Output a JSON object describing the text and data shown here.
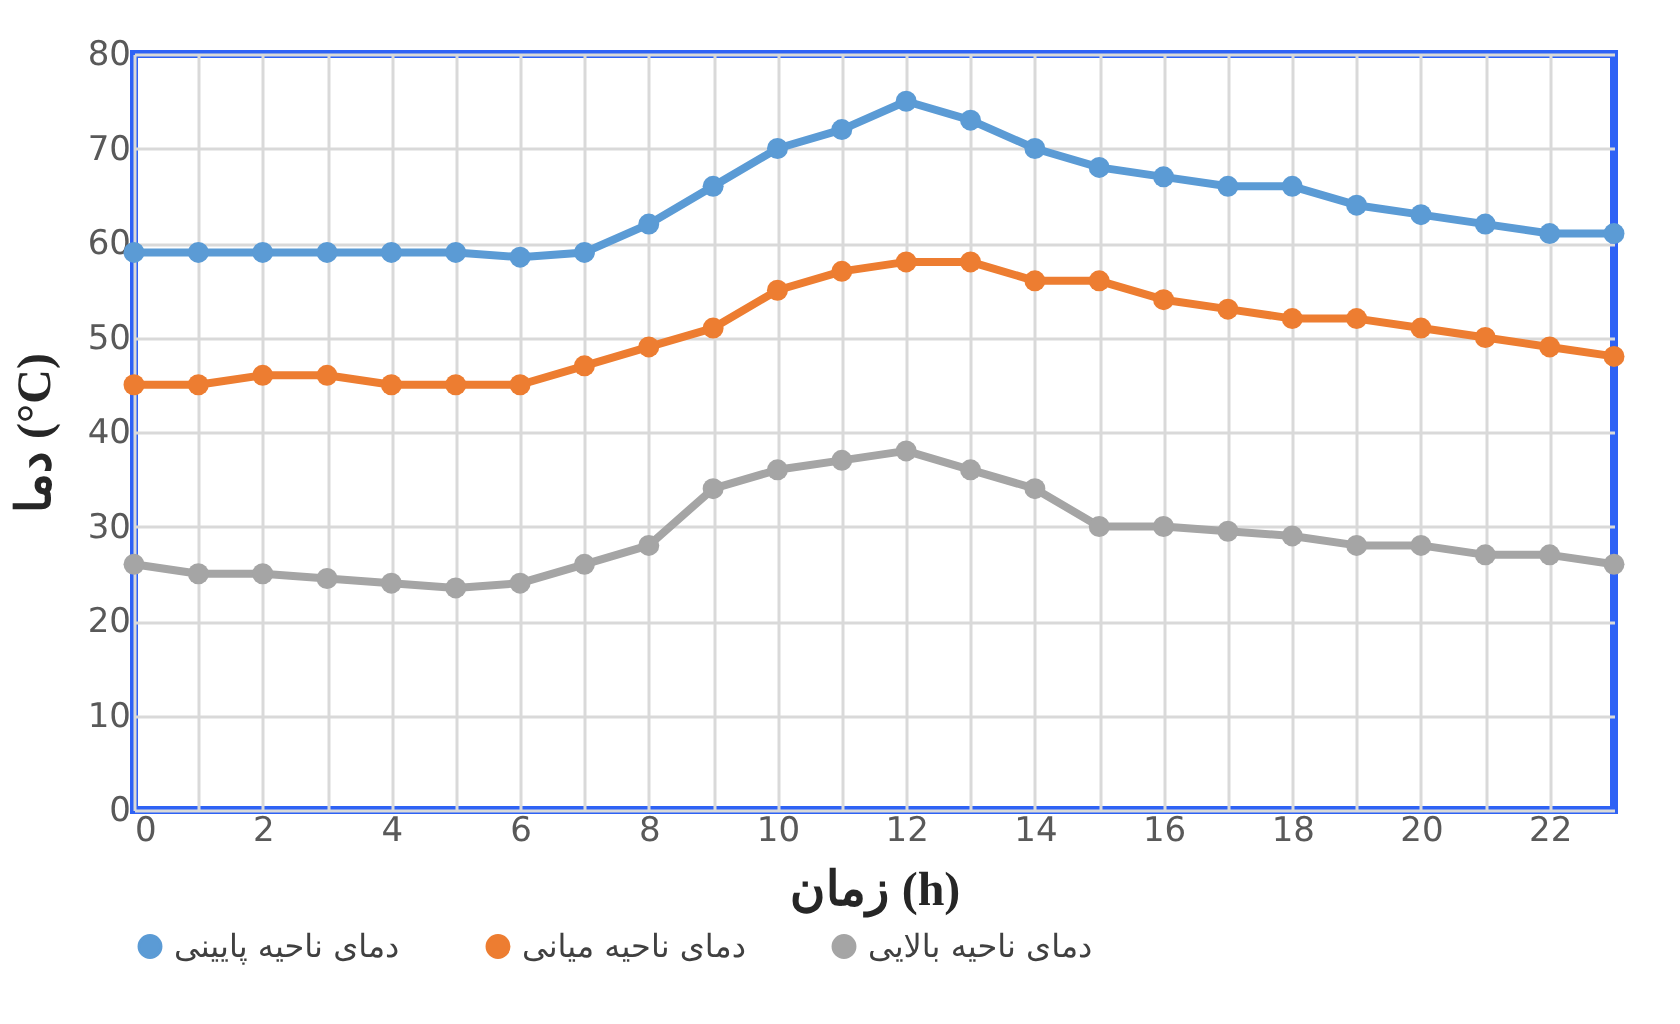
{
  "chart_data": {
    "type": "line",
    "xlabel": "زمان (h)",
    "ylabel": "دما (°C)",
    "x": [
      0,
      1,
      2,
      3,
      4,
      5,
      6,
      7,
      8,
      9,
      10,
      11,
      12,
      13,
      14,
      15,
      16,
      17,
      18,
      19,
      20,
      21,
      22,
      23
    ],
    "xlim": [
      0,
      23
    ],
    "xticks": [
      0,
      {
        "value": 1,
        "label": null
      },
      2,
      {
        "value": 3,
        "label": null
      },
      4,
      {
        "value": 5,
        "label": null
      },
      6,
      {
        "value": 7,
        "label": null
      },
      8,
      {
        "value": 9,
        "label": null
      },
      10,
      {
        "value": 11,
        "label": null
      },
      12,
      {
        "value": 13,
        "label": null
      },
      14,
      {
        "value": 15,
        "label": null
      },
      16,
      {
        "value": 17,
        "label": null
      },
      18,
      {
        "value": 19,
        "label": null
      },
      20,
      {
        "value": 21,
        "label": null
      },
      22
    ],
    "ylim": [
      0,
      80
    ],
    "yticks": [
      0,
      10,
      20,
      30,
      40,
      50,
      60,
      70,
      80
    ],
    "grid": true,
    "legend": "bottom",
    "marker": "circle",
    "line_style": "solid",
    "series": [
      {
        "name": "دمای ناحیه پایینی",
        "color": "#5b9bd5",
        "values": [
          59,
          59,
          59,
          59,
          59,
          59,
          58.5,
          59,
          62,
          66,
          70,
          72,
          75,
          73,
          70,
          68,
          67,
          66,
          66,
          64,
          63,
          62,
          61,
          61
        ]
      },
      {
        "name": "دمای ناحیه میانی",
        "color": "#ed7d31",
        "values": [
          45,
          45,
          46,
          46,
          45,
          45,
          45,
          47,
          49,
          51,
          55,
          57,
          58,
          58,
          56,
          56,
          54,
          53,
          52,
          52,
          51,
          50,
          49,
          48
        ]
      },
      {
        "name": "دمای ناحیه بالایی",
        "color": "#a5a5a5",
        "values": [
          26,
          25,
          25,
          24.5,
          24,
          23.5,
          24,
          26,
          28,
          34,
          36,
          37,
          38,
          36,
          34,
          30,
          30,
          29.5,
          29,
          28,
          28,
          27,
          27,
          26
        ]
      }
    ]
  }
}
